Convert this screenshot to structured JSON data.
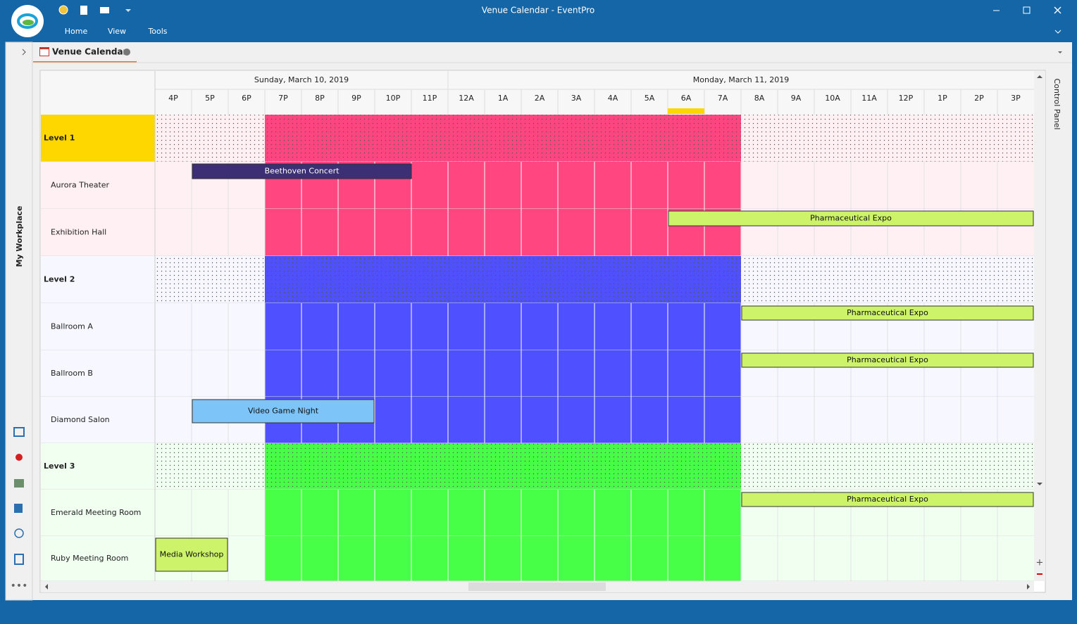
{
  "window": {
    "title": "Venue Calendar - EventPro",
    "menu": [
      "Home",
      "View",
      "Tools"
    ]
  },
  "tab": {
    "label": "Venue Calendar"
  },
  "sidebar": {
    "label": "My Workplace"
  },
  "right_panel": {
    "label": "Control Panel"
  },
  "calendar": {
    "dates": [
      "Sunday, March 10, 2019",
      "Monday, March 11, 2019"
    ],
    "times": [
      "4P",
      "5P",
      "6P",
      "7P",
      "8P",
      "9P",
      "10P",
      "11P",
      "12A",
      "1A",
      "2A",
      "3A",
      "4A",
      "5A",
      "6A",
      "7A",
      "8A",
      "9A",
      "10A",
      "11A",
      "12P",
      "1P",
      "2P",
      "3P"
    ],
    "groups": [
      {
        "label": "Level 1",
        "rooms": [
          "Aurora Theater",
          "Exhibition Hall"
        ]
      },
      {
        "label": "Level 2",
        "rooms": [
          "Ballroom A",
          "Ballroom B",
          "Diamond Salon"
        ]
      },
      {
        "label": "Level 3",
        "rooms": [
          "Emerald Meeting Room",
          "Ruby Meeting Room"
        ]
      }
    ],
    "events": [
      "Beethoven Concert",
      "Pharmaceutical Expo",
      "Pharmaceutical Expo",
      "Pharmaceutical Expo",
      "Video Game Night",
      "Pharmaceutical Expo",
      "Media Workshop"
    ]
  }
}
